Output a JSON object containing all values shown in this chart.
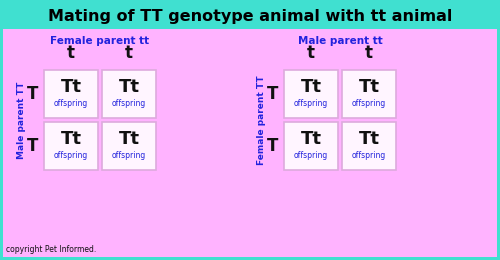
{
  "title": "Mating of TT genotype animal with tt animal",
  "title_fontsize": 11.5,
  "title_color": "#000000",
  "title_bg": "#40e0d0",
  "bg_color": "#ffb3ff",
  "cell_bg": "#fff5ff",
  "left_top_label": "Female parent tt",
  "right_top_label": "Male parent tt",
  "left_side_label": "Male parent TT",
  "right_side_label": "Female parent TT",
  "label_color": "#2222dd",
  "col_headers": [
    "t",
    "t"
  ],
  "row_headers": [
    "T",
    "T"
  ],
  "cell_content": "Tt",
  "cell_sub": "offspring",
  "copyright": "copyright Pet Informed.",
  "border_color": "#ddaadd",
  "cyan_border": "#40e0d0"
}
